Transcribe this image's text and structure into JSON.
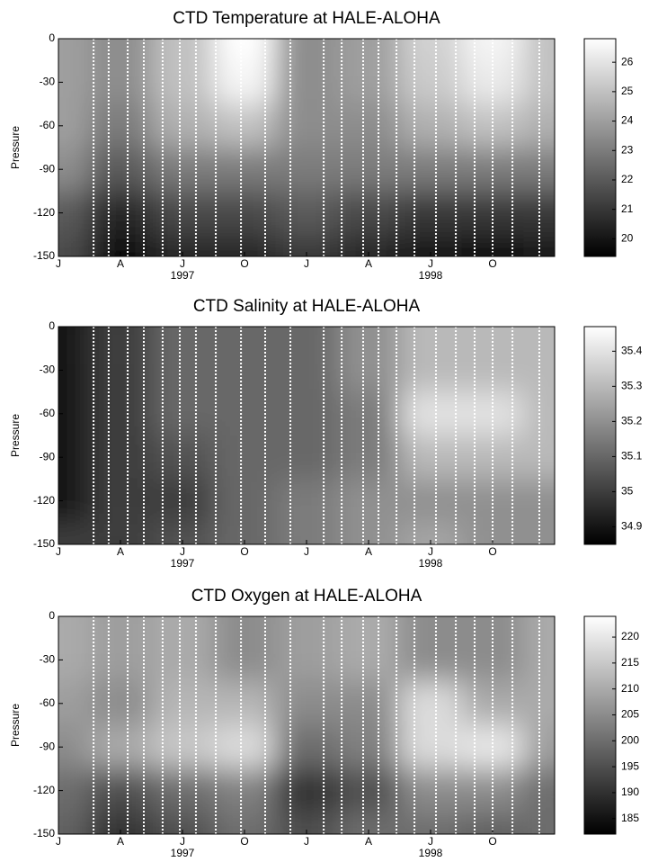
{
  "chart_data": [
    {
      "type": "heatmap",
      "title": "CTD Temperature at HALE-ALOHA",
      "y_label": "Pressure",
      "x": [
        0,
        3,
        6,
        9,
        12,
        15,
        18,
        21,
        24
      ],
      "y": [
        0,
        -30,
        -60,
        -90,
        -120,
        -150
      ],
      "values": [
        [
          24,
          23.5,
          25,
          26.8,
          23.5,
          24,
          25.5,
          26.5,
          25
        ],
        [
          24,
          23.5,
          25,
          26.5,
          23.5,
          24,
          25.3,
          26.2,
          25
        ],
        [
          24,
          23,
          24.5,
          25,
          23.5,
          23.5,
          24.5,
          25,
          24.5
        ],
        [
          23.5,
          22,
          23,
          23,
          23,
          23,
          23,
          23,
          23
        ],
        [
          22,
          20.5,
          21.5,
          21.5,
          22,
          21.5,
          21,
          21,
          21
        ],
        [
          21.5,
          19.8,
          20.5,
          20.5,
          21,
          20.5,
          20,
          19.8,
          20
        ]
      ],
      "cruises": [
        1.7,
        2.43,
        3.35,
        4.13,
        5.04,
        5.87,
        6.65,
        7.61,
        8.83,
        10.0,
        11.22,
        12.83,
        13.7,
        14.74,
        15.48,
        16.35,
        17.22,
        18.26,
        19.22,
        20.13,
        21.0,
        21.96,
        23.26
      ],
      "xlim": [
        0,
        24
      ],
      "xticks": [
        {
          "value": 0,
          "label": "J"
        },
        {
          "value": 3,
          "label": "A"
        },
        {
          "value": 6,
          "label": "J"
        },
        {
          "value": 9,
          "label": "O"
        },
        {
          "value": 12,
          "label": "J"
        },
        {
          "value": 15,
          "label": "A"
        },
        {
          "value": 18,
          "label": "J"
        },
        {
          "value": 21,
          "label": "O"
        }
      ],
      "year_labels": [
        {
          "value": 6,
          "label": "1997"
        },
        {
          "value": 18,
          "label": "1998"
        }
      ],
      "ylim": [
        -150,
        0
      ],
      "yticks": [
        0,
        -30,
        -60,
        -90,
        -120,
        -150
      ],
      "clim": [
        19.4,
        26.8
      ],
      "cticks": [
        26,
        25,
        24,
        23,
        22,
        21,
        20
      ]
    },
    {
      "type": "heatmap",
      "title": "CTD Salinity at HALE-ALOHA",
      "y_label": "Pressure",
      "x": [
        0,
        3,
        6,
        9,
        12,
        15,
        18,
        21,
        24
      ],
      "y": [
        0,
        -30,
        -60,
        -90,
        -120,
        -150
      ],
      "values": [
        [
          34.9,
          35.0,
          35.1,
          35.1,
          35.1,
          35.2,
          35.3,
          35.3,
          35.3
        ],
        [
          34.9,
          35.0,
          35.1,
          35.1,
          35.1,
          35.2,
          35.3,
          35.3,
          35.3
        ],
        [
          34.9,
          35.0,
          35.1,
          35.1,
          35.1,
          35.15,
          35.4,
          35.4,
          35.3
        ],
        [
          34.9,
          35.0,
          35.05,
          35.1,
          35.1,
          35.15,
          35.3,
          35.3,
          35.3
        ],
        [
          34.9,
          35.0,
          35.0,
          35.1,
          35.15,
          35.2,
          35.2,
          35.2,
          35.2
        ],
        [
          35.0,
          35.0,
          35.05,
          35.1,
          35.15,
          35.2,
          35.25,
          35.2,
          35.2
        ]
      ],
      "cruises": [
        1.7,
        2.43,
        3.35,
        4.13,
        5.04,
        5.87,
        6.65,
        7.61,
        8.83,
        10.0,
        11.22,
        12.83,
        13.7,
        14.74,
        15.48,
        16.35,
        17.22,
        18.26,
        19.22,
        20.13,
        21.0,
        21.96,
        23.26
      ],
      "xlim": [
        0,
        24
      ],
      "xticks": [
        {
          "value": 0,
          "label": "J"
        },
        {
          "value": 3,
          "label": "A"
        },
        {
          "value": 6,
          "label": "J"
        },
        {
          "value": 9,
          "label": "O"
        },
        {
          "value": 12,
          "label": "J"
        },
        {
          "value": 15,
          "label": "A"
        },
        {
          "value": 18,
          "label": "J"
        },
        {
          "value": 21,
          "label": "O"
        }
      ],
      "year_labels": [
        {
          "value": 6,
          "label": "1997"
        },
        {
          "value": 18,
          "label": "1998"
        }
      ],
      "ylim": [
        -150,
        0
      ],
      "yticks": [
        0,
        -30,
        -60,
        -90,
        -120,
        -150
      ],
      "clim": [
        34.85,
        35.47
      ],
      "cticks": [
        35.4,
        35.3,
        35.2,
        35.1,
        35,
        34.9
      ]
    },
    {
      "type": "heatmap",
      "title": "CTD Oxygen at HALE-ALOHA",
      "y_label": "Pressure",
      "x": [
        0,
        3,
        6,
        9,
        12,
        15,
        18,
        21,
        24
      ],
      "y": [
        0,
        -30,
        -60,
        -90,
        -120,
        -150
      ],
      "values": [
        [
          210,
          208,
          210,
          205,
          208,
          210,
          205,
          205,
          210
        ],
        [
          210,
          208,
          210,
          205,
          208,
          210,
          205,
          205,
          210
        ],
        [
          208,
          205,
          212,
          212,
          205,
          205,
          218,
          210,
          210
        ],
        [
          205,
          210,
          215,
          218,
          200,
          203,
          218,
          220,
          208
        ],
        [
          200,
          195,
          200,
          203,
          190,
          195,
          205,
          205,
          200
        ],
        [
          198,
          190,
          195,
          200,
          195,
          200,
          200,
          198,
          200
        ]
      ],
      "cruises": [
        1.7,
        2.43,
        3.35,
        4.13,
        5.04,
        5.87,
        6.65,
        7.61,
        8.83,
        10.0,
        11.22,
        12.83,
        13.7,
        14.74,
        15.48,
        16.35,
        17.22,
        18.26,
        19.22,
        20.13,
        21.0,
        21.96,
        23.26
      ],
      "xlim": [
        0,
        24
      ],
      "xticks": [
        {
          "value": 0,
          "label": "J"
        },
        {
          "value": 3,
          "label": "A"
        },
        {
          "value": 6,
          "label": "J"
        },
        {
          "value": 9,
          "label": "O"
        },
        {
          "value": 12,
          "label": "J"
        },
        {
          "value": 15,
          "label": "A"
        },
        {
          "value": 18,
          "label": "J"
        },
        {
          "value": 21,
          "label": "O"
        }
      ],
      "year_labels": [
        {
          "value": 6,
          "label": "1997"
        },
        {
          "value": 18,
          "label": "1998"
        }
      ],
      "ylim": [
        -150,
        0
      ],
      "yticks": [
        0,
        -30,
        -60,
        -90,
        -120,
        -150
      ],
      "clim": [
        182,
        224
      ],
      "cticks": [
        220,
        215,
        210,
        205,
        200,
        195,
        190,
        185
      ]
    }
  ]
}
